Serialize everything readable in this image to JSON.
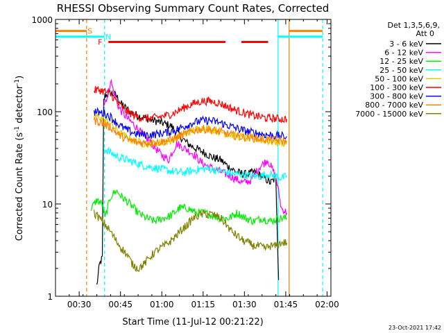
{
  "chart_data": {
    "type": "line",
    "title": "RHESSI Observing Summary Count Rates, Corrected",
    "xlabel": "Start Time (11-Jul-12 00:21:22)",
    "ylabel_main": "Corrected Count Rate (s",
    "ylabel_sup1": "-1",
    "ylabel_mid": " detector",
    "ylabel_sup2": "-1",
    "ylabel_end": ")",
    "yscale": "log",
    "ylim": [
      1,
      1000
    ],
    "xlim_minutes": [
      0,
      100
    ],
    "x_ticks": [
      {
        "label": "00:30",
        "minute": 8.6
      },
      {
        "label": "00:45",
        "minute": 23.6
      },
      {
        "label": "01:00",
        "minute": 38.6
      },
      {
        "label": "01:15",
        "minute": 53.6
      },
      {
        "label": "01:30",
        "minute": 68.6
      },
      {
        "label": "01:45",
        "minute": 83.6
      },
      {
        "label": "02:00",
        "minute": 98.6
      }
    ],
    "y_ticks": [
      {
        "label": "1",
        "value": 1
      },
      {
        "label": "10",
        "value": 10
      },
      {
        "label": "100",
        "value": 100
      },
      {
        "label": "1000",
        "value": 1000
      }
    ],
    "legend_header": [
      "Det 1,3,5,6,9,",
      "Att 0"
    ],
    "series": [
      {
        "name": "3 - 6 keV",
        "color": "#000000",
        "points": [
          [
            15,
            1.3
          ],
          [
            16,
            2.2
          ],
          [
            17,
            2.6
          ],
          [
            17.5,
            130
          ],
          [
            18,
            150
          ],
          [
            20,
            160
          ],
          [
            22,
            150
          ],
          [
            24,
            120
          ],
          [
            27,
            100
          ],
          [
            30,
            90
          ],
          [
            33,
            85
          ],
          [
            36,
            80
          ],
          [
            39,
            75
          ],
          [
            42,
            70
          ],
          [
            45,
            55
          ],
          [
            48,
            45
          ],
          [
            51,
            40
          ],
          [
            54,
            36
          ],
          [
            57,
            32
          ],
          [
            60,
            30
          ],
          [
            63,
            25
          ],
          [
            66,
            22
          ],
          [
            69,
            21
          ],
          [
            72,
            22
          ],
          [
            75,
            20
          ],
          [
            78,
            17
          ],
          [
            80,
            19
          ],
          [
            81,
            1.5
          ]
        ]
      },
      {
        "name": "6 - 12 keV",
        "color": "#ff00ff",
        "points": [
          [
            17.5,
            120
          ],
          [
            19,
            150
          ],
          [
            20,
            220
          ],
          [
            21,
            170
          ],
          [
            23,
            110
          ],
          [
            26,
            85
          ],
          [
            29,
            70
          ],
          [
            32,
            55
          ],
          [
            35,
            45
          ],
          [
            38,
            35
          ],
          [
            41,
            30
          ],
          [
            44,
            45
          ],
          [
            47,
            40
          ],
          [
            50,
            35
          ],
          [
            53,
            28
          ],
          [
            56,
            25
          ],
          [
            59,
            23
          ],
          [
            62,
            21
          ],
          [
            65,
            19
          ],
          [
            68,
            17
          ],
          [
            71,
            18
          ],
          [
            74,
            25
          ],
          [
            77,
            30
          ],
          [
            80,
            20
          ],
          [
            82,
            9
          ],
          [
            84,
            8
          ]
        ]
      },
      {
        "name": "12 - 25 keV",
        "color": "#00ee00",
        "points": [
          [
            13,
            9
          ],
          [
            15,
            11
          ],
          [
            17,
            10
          ],
          [
            18,
            7
          ],
          [
            20,
            12
          ],
          [
            22,
            14
          ],
          [
            24,
            12
          ],
          [
            27,
            10
          ],
          [
            30,
            8
          ],
          [
            33,
            7
          ],
          [
            36,
            6.5
          ],
          [
            39,
            7
          ],
          [
            42,
            7.5
          ],
          [
            45,
            9
          ],
          [
            48,
            9
          ],
          [
            51,
            8
          ],
          [
            54,
            8
          ],
          [
            57,
            7.5
          ],
          [
            60,
            7
          ],
          [
            63,
            7
          ],
          [
            66,
            8
          ],
          [
            69,
            7
          ],
          [
            72,
            6.5
          ],
          [
            75,
            7
          ],
          [
            78,
            6.5
          ],
          [
            81,
            7
          ],
          [
            84,
            7
          ]
        ]
      },
      {
        "name": "25 - 50 keV",
        "color": "#00ffff",
        "points": [
          [
            17.5,
            40
          ],
          [
            20,
            36
          ],
          [
            23,
            32
          ],
          [
            26,
            30
          ],
          [
            29,
            28
          ],
          [
            32,
            26
          ],
          [
            35,
            25
          ],
          [
            38,
            24
          ],
          [
            41,
            23
          ],
          [
            44,
            22
          ],
          [
            47,
            22
          ],
          [
            50,
            23
          ],
          [
            53,
            24
          ],
          [
            56,
            24
          ],
          [
            59,
            23
          ],
          [
            62,
            22
          ],
          [
            65,
            21
          ],
          [
            68,
            21
          ],
          [
            71,
            20
          ],
          [
            74,
            20
          ],
          [
            77,
            21
          ],
          [
            80,
            20
          ],
          [
            82,
            19
          ],
          [
            84,
            20
          ]
        ]
      },
      {
        "name": "50 - 100 keV",
        "color": "#e6c800",
        "points": [
          [
            14,
            90
          ],
          [
            16,
            88
          ],
          [
            18,
            80
          ],
          [
            20,
            75
          ],
          [
            23,
            60
          ],
          [
            26,
            52
          ],
          [
            29,
            48
          ],
          [
            32,
            45
          ],
          [
            35,
            45
          ],
          [
            38,
            46
          ],
          [
            41,
            48
          ],
          [
            44,
            52
          ],
          [
            47,
            58
          ],
          [
            50,
            63
          ],
          [
            53,
            66
          ],
          [
            56,
            65
          ],
          [
            59,
            62
          ],
          [
            62,
            58
          ],
          [
            65,
            55
          ],
          [
            68,
            53
          ],
          [
            71,
            52
          ],
          [
            74,
            50
          ],
          [
            77,
            48
          ],
          [
            80,
            47
          ],
          [
            83,
            46
          ],
          [
            84,
            46
          ]
        ]
      },
      {
        "name": "100 - 300 keV",
        "color": "#ff0000",
        "points": [
          [
            14,
            170
          ],
          [
            16,
            172
          ],
          [
            18,
            165
          ],
          [
            20,
            155
          ],
          [
            23,
            120
          ],
          [
            26,
            100
          ],
          [
            29,
            90
          ],
          [
            32,
            85
          ],
          [
            35,
            85
          ],
          [
            38,
            88
          ],
          [
            41,
            92
          ],
          [
            44,
            100
          ],
          [
            47,
            112
          ],
          [
            50,
            122
          ],
          [
            53,
            130
          ],
          [
            56,
            130
          ],
          [
            59,
            125
          ],
          [
            62,
            115
          ],
          [
            65,
            105
          ],
          [
            68,
            98
          ],
          [
            71,
            92
          ],
          [
            74,
            88
          ],
          [
            77,
            85
          ],
          [
            80,
            84
          ],
          [
            83,
            83
          ],
          [
            84,
            83
          ]
        ]
      },
      {
        "name": "300 - 800 keV",
        "color": "#0000ff",
        "points": [
          [
            14,
            100
          ],
          [
            16,
            98
          ],
          [
            18,
            95
          ],
          [
            20,
            88
          ],
          [
            23,
            72
          ],
          [
            26,
            63
          ],
          [
            29,
            58
          ],
          [
            32,
            56
          ],
          [
            35,
            56
          ],
          [
            38,
            58
          ],
          [
            41,
            60
          ],
          [
            44,
            64
          ],
          [
            47,
            70
          ],
          [
            50,
            76
          ],
          [
            53,
            80
          ],
          [
            56,
            80
          ],
          [
            59,
            77
          ],
          [
            62,
            72
          ],
          [
            65,
            67
          ],
          [
            68,
            63
          ],
          [
            71,
            60
          ],
          [
            74,
            58
          ],
          [
            77,
            56
          ],
          [
            80,
            55
          ],
          [
            83,
            54
          ],
          [
            84,
            54
          ]
        ]
      },
      {
        "name": "800 - 7000 keV",
        "color": "#ff8000",
        "points": [
          [
            14,
            80
          ],
          [
            16,
            78
          ],
          [
            18,
            72
          ],
          [
            20,
            68
          ],
          [
            23,
            56
          ],
          [
            26,
            50
          ],
          [
            29,
            47
          ],
          [
            32,
            46
          ],
          [
            35,
            46
          ],
          [
            38,
            47
          ],
          [
            41,
            49
          ],
          [
            44,
            52
          ],
          [
            47,
            57
          ],
          [
            50,
            62
          ],
          [
            53,
            65
          ],
          [
            56,
            64
          ],
          [
            59,
            61
          ],
          [
            62,
            58
          ],
          [
            65,
            55
          ],
          [
            68,
            53
          ],
          [
            71,
            52
          ],
          [
            74,
            51
          ],
          [
            77,
            50
          ],
          [
            80,
            49
          ],
          [
            83,
            48
          ],
          [
            84,
            48
          ]
        ]
      },
      {
        "name": "7000 - 15000 keV",
        "color": "#808000",
        "points": [
          [
            14,
            8
          ],
          [
            16,
            7
          ],
          [
            18,
            6
          ],
          [
            20,
            5
          ],
          [
            22,
            4
          ],
          [
            24,
            3.3
          ],
          [
            26,
            2.8
          ],
          [
            28,
            2.2
          ],
          [
            30,
            2
          ],
          [
            32,
            2.2
          ],
          [
            34,
            2.6
          ],
          [
            36,
            3
          ],
          [
            38,
            3.3
          ],
          [
            40,
            3.6
          ],
          [
            42,
            4
          ],
          [
            44,
            4.6
          ],
          [
            46,
            5.3
          ],
          [
            48,
            6
          ],
          [
            50,
            7
          ],
          [
            52,
            7.5
          ],
          [
            54,
            7.8
          ],
          [
            56,
            7.8
          ],
          [
            58,
            7.5
          ],
          [
            60,
            7
          ],
          [
            62,
            6
          ],
          [
            64,
            5
          ],
          [
            66,
            4.5
          ],
          [
            68,
            4
          ],
          [
            70,
            3.8
          ],
          [
            72,
            3.5
          ],
          [
            74,
            3.5
          ],
          [
            76,
            3.3
          ],
          [
            78,
            3.5
          ],
          [
            80,
            3.5
          ],
          [
            82,
            3.8
          ],
          [
            84,
            3.8
          ]
        ]
      }
    ],
    "flags": [
      {
        "label": "S",
        "color": "#ff8000",
        "level": 750,
        "segments": [
          [
            0,
            11.3
          ],
          [
            84.8,
            97
          ]
        ],
        "label_minute": 12.5
      },
      {
        "label": "N",
        "color": "#00ffff",
        "level": 650,
        "segments": [
          [
            0,
            17.8
          ],
          [
            80.8,
            97
          ]
        ],
        "label_minute": 19.2
      },
      {
        "label": "F",
        "color": "#ff0000",
        "level": 570,
        "segments": [
          [
            19.2,
            61.7
          ],
          [
            67.5,
            77.2
          ]
        ],
        "label_minute": 16.2
      }
    ],
    "vlines": [
      {
        "minute": 11.3,
        "color": "#ff8000",
        "dashed": true
      },
      {
        "minute": 17.8,
        "color": "#00ffff",
        "dashed": true
      },
      {
        "minute": 80.8,
        "color": "#00ffff",
        "dashed": false
      },
      {
        "minute": 84.8,
        "color": "#ff8000",
        "dashed": false
      },
      {
        "minute": 97.0,
        "color": "#00ffff",
        "dashed": true
      }
    ],
    "timestamp": "23-Oct-2021 17:42"
  }
}
